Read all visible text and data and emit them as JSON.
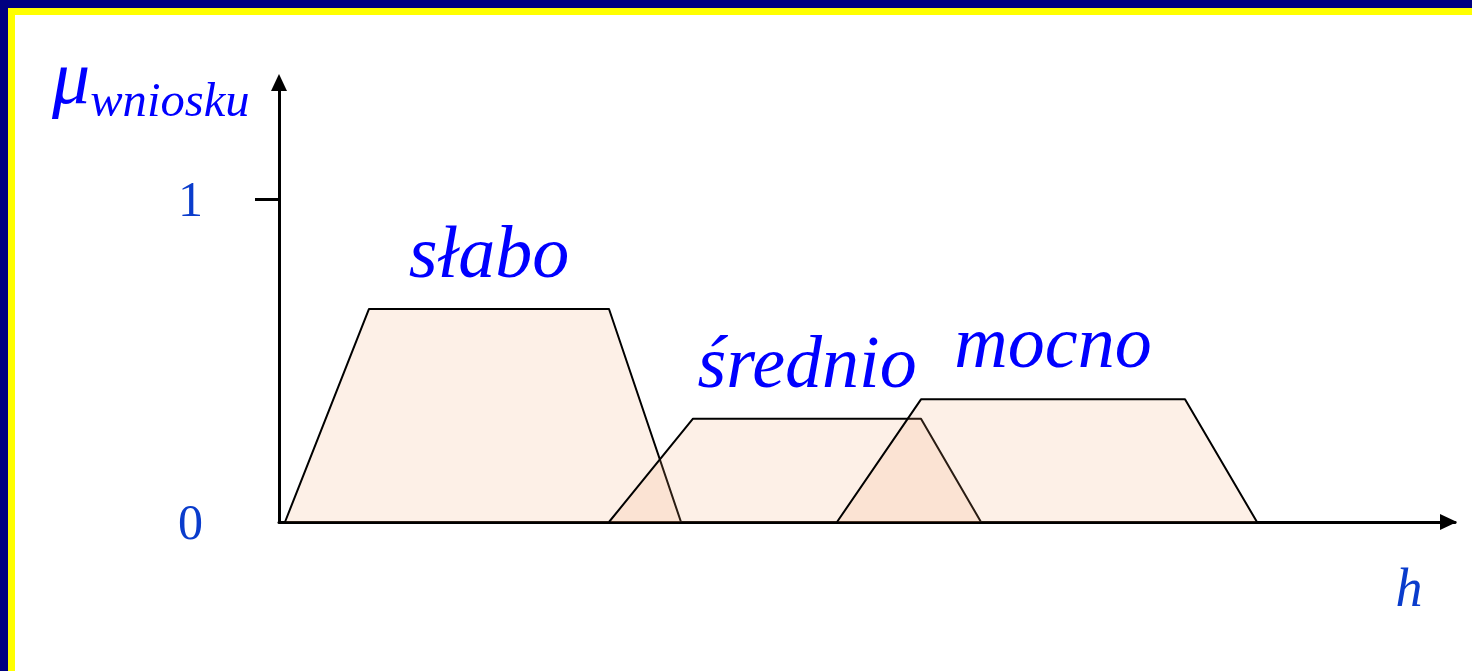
{
  "chart_data": {
    "type": "area",
    "ylabel": "μ$_{wniosku}$",
    "xlabel": "h",
    "categories": [
      null,
      null,
      null,
      null,
      null,
      null,
      null,
      null,
      null,
      null,
      null,
      null,
      null,
      null,
      null,
      null,
      null,
      null,
      null,
      null,
      null,
      null,
      null,
      null,
      null,
      null,
      null,
      null,
      null,
      null,
      null,
      null,
      null,
      null,
      null,
      null,
      null,
      null,
      null,
      null,
      null,
      null,
      null,
      null,
      null,
      null,
      null,
      null,
      null,
      null,
      null,
      null,
      null,
      null,
      null,
      null,
      null,
      null,
      null,
      null,
      null,
      null,
      null,
      null,
      null,
      null,
      null,
      null,
      null,
      null,
      null,
      null,
      null,
      null,
      null,
      null,
      null,
      null,
      null,
      null,
      null,
      null,
      null,
      null,
      null,
      null,
      null,
      null,
      null,
      null,
      null,
      null,
      null,
      null,
      null,
      null,
      null,
      null
    ],
    "series": [
      {
        "name": "słabo",
        "color": "#f5a66f",
        "values": [
          0,
          null,
          null,
          null,
          null,
          null,
          null,
          0.66,
          null,
          null,
          null,
          null,
          null,
          null,
          null,
          null,
          null,
          null,
          null,
          null,
          null,
          null,
          null,
          null,
          null,
          null,
          null,
          0.66,
          null,
          null,
          null,
          null,
          null,
          0,
          null,
          null,
          null,
          null,
          null,
          null,
          null,
          null,
          null,
          null,
          null,
          null,
          null,
          null,
          null,
          null,
          null,
          null,
          null,
          null,
          null,
          null,
          null,
          null,
          null,
          null,
          null,
          null,
          null,
          null,
          null,
          null,
          null,
          null,
          null,
          null,
          null,
          null,
          null,
          null,
          null,
          null,
          null,
          null,
          null,
          null,
          null,
          null,
          null,
          null,
          null,
          null,
          null,
          null,
          null,
          null,
          null,
          null,
          null,
          null,
          null,
          null,
          null,
          null
        ]
      },
      {
        "name": "średnio",
        "color": "#f5a66f",
        "values": [
          null,
          null,
          null,
          null,
          null,
          null,
          null,
          null,
          null,
          null,
          null,
          null,
          null,
          null,
          null,
          null,
          null,
          null,
          null,
          null,
          null,
          null,
          null,
          null,
          null,
          null,
          null,
          0,
          null,
          null,
          null,
          null,
          null,
          null,
          0.32,
          null,
          null,
          null,
          null,
          null,
          null,
          null,
          null,
          null,
          null,
          null,
          null,
          null,
          null,
          null,
          null,
          null,
          null,
          0.32,
          null,
          null,
          null,
          null,
          0,
          null,
          null,
          null,
          null,
          null,
          null,
          null,
          null,
          null,
          null,
          null,
          null,
          null,
          null,
          null,
          null,
          null,
          null,
          null,
          null,
          null,
          null,
          null,
          null,
          null,
          null,
          null,
          null,
          null,
          null,
          null,
          null,
          null,
          null,
          null,
          null,
          null,
          null,
          null
        ]
      },
      {
        "name": "mocno",
        "color": "#f5a66f",
        "values": [
          null,
          null,
          null,
          null,
          null,
          null,
          null,
          null,
          null,
          null,
          null,
          null,
          null,
          null,
          null,
          null,
          null,
          null,
          null,
          null,
          null,
          null,
          null,
          null,
          null,
          null,
          null,
          null,
          null,
          null,
          null,
          null,
          null,
          null,
          null,
          null,
          null,
          null,
          null,
          null,
          null,
          null,
          null,
          null,
          null,
          null,
          0,
          null,
          null,
          null,
          null,
          null,
          null,
          0.38,
          null,
          null,
          null,
          null,
          null,
          null,
          null,
          null,
          null,
          null,
          null,
          null,
          null,
          null,
          null,
          null,
          null,
          null,
          null,
          null,
          null,
          0.38,
          null,
          null,
          null,
          null,
          null,
          0,
          null,
          null,
          null,
          null,
          null,
          null,
          null,
          null,
          null,
          null,
          null,
          null,
          null,
          null,
          null,
          null
        ]
      }
    ],
    "ylim": [
      0,
      1.36
    ],
    "yticks": [
      0,
      1
    ],
    "line_style": "solid"
  }
}
